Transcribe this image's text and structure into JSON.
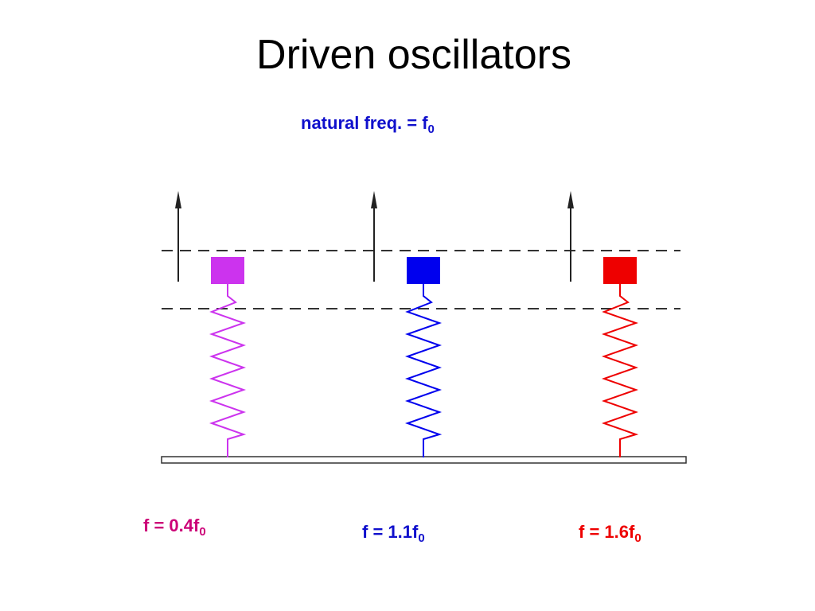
{
  "title": "Driven oscillators",
  "caption": {
    "text": "natural freq. = f",
    "subscript": "0",
    "color": "#1010cc"
  },
  "oscillators": [
    {
      "label": "f = 0.4f",
      "subscript": "0",
      "color": "#cc33ee",
      "label_color": "#cc0077"
    },
    {
      "label": "f = 1.1f",
      "subscript": "0",
      "color": "#0000ee",
      "label_color": "#1010cc"
    },
    {
      "label": "f = 1.6f",
      "subscript": "0",
      "color": "#ee0000",
      "label_color": "#ee0000"
    }
  ]
}
